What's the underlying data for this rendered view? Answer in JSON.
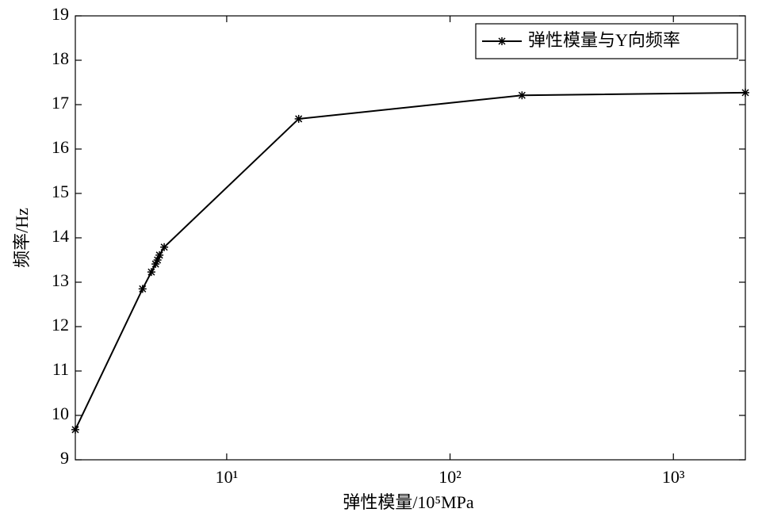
{
  "chart_data": {
    "type": "line",
    "x_label": "弹性模量/10⁵MPa",
    "y_label": "频率/Hz",
    "x": [
      2.1,
      4.2,
      4.6,
      4.8,
      4.9,
      5.0,
      5.25,
      21,
      210,
      2100
    ],
    "series": [
      {
        "name": "弹性模量与Y向频率",
        "color": "#000000",
        "values": [
          9.68,
          12.85,
          13.23,
          13.41,
          13.5,
          13.61,
          13.79,
          16.68,
          17.21,
          17.27
        ]
      }
    ],
    "xlim": [
      2.1,
      2100
    ],
    "ylim": [
      9,
      19
    ],
    "x_log": true,
    "xticks": [
      {
        "value": 10,
        "label": "10¹"
      },
      {
        "value": 100,
        "label": "10²"
      },
      {
        "value": 1000,
        "label": "10³"
      }
    ],
    "yticks": [
      9,
      10,
      11,
      12,
      13,
      14,
      15,
      16,
      17,
      18,
      19
    ],
    "legend": "top-right"
  }
}
